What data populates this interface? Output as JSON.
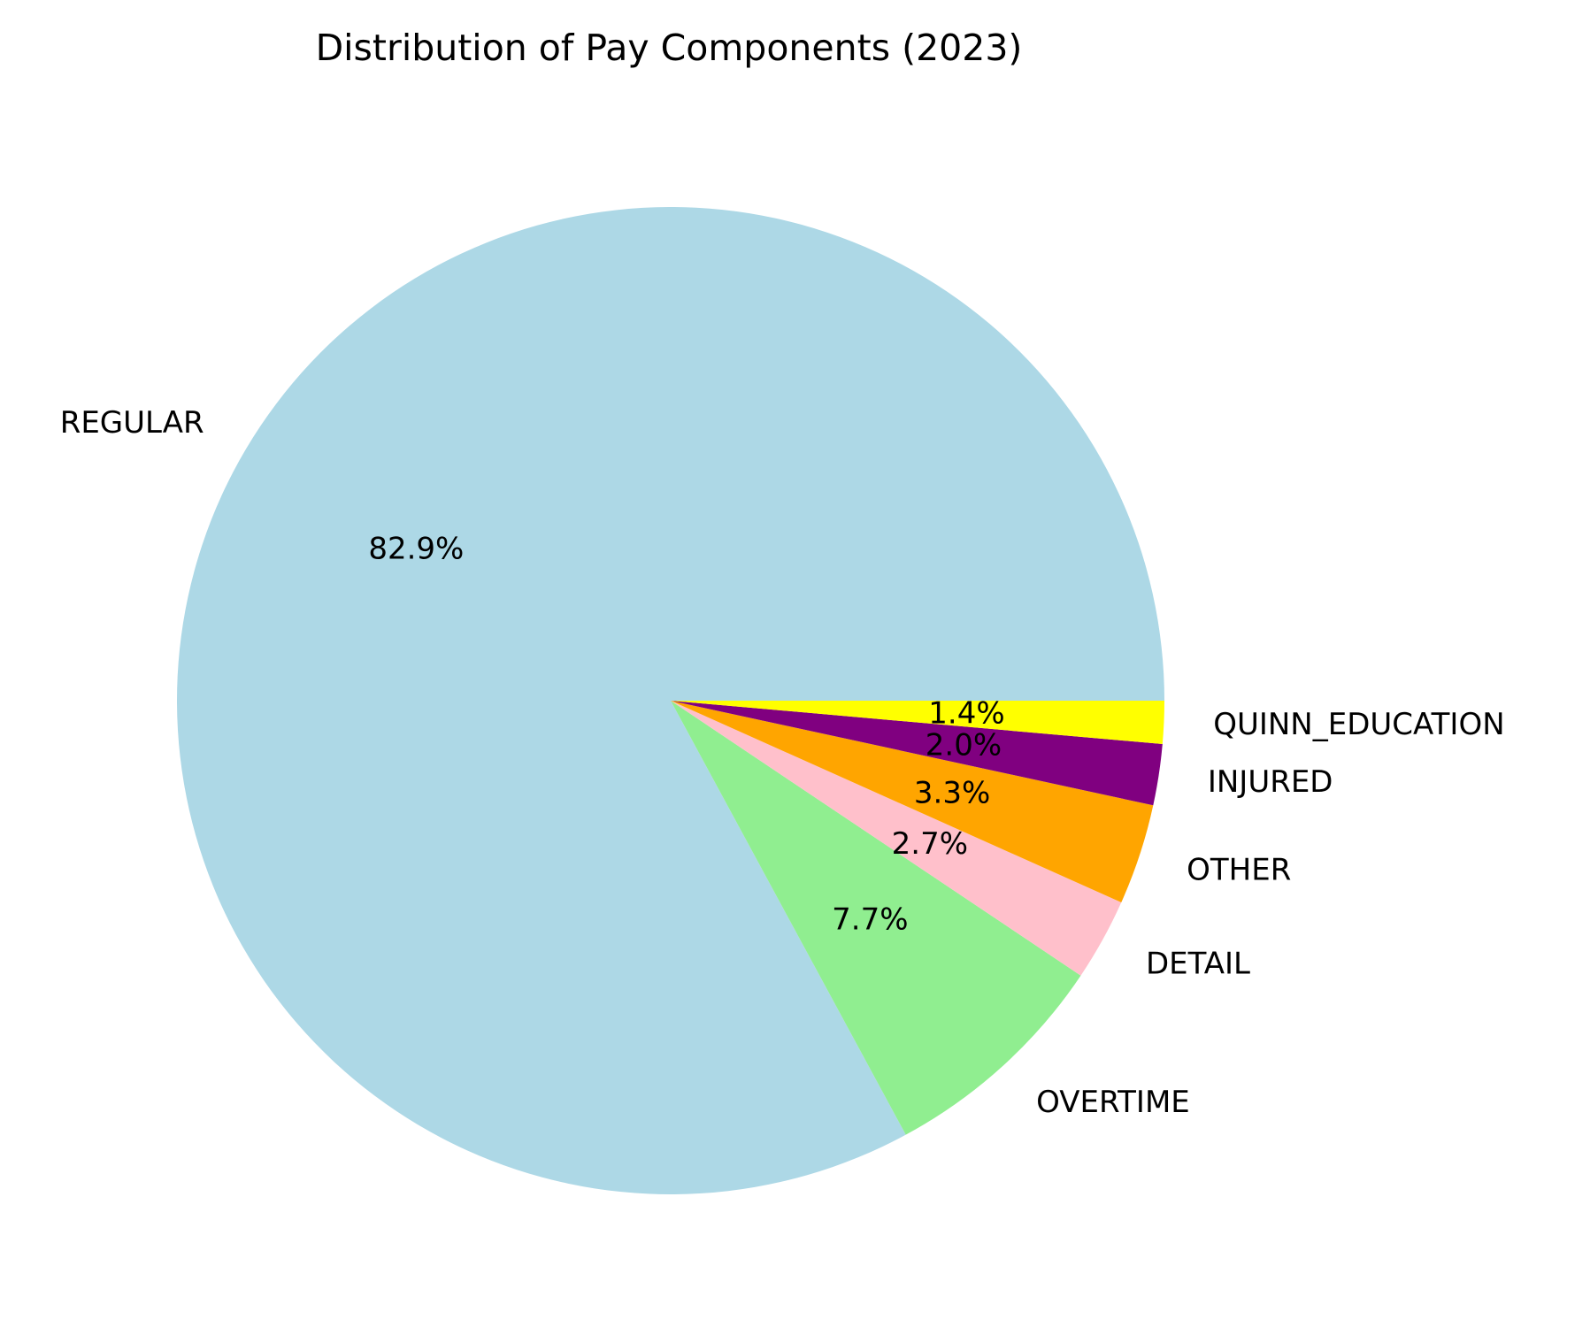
{
  "chart_data": {
    "type": "pie",
    "title": "Distribution of Pay Components (2023)",
    "start_angle": 0,
    "direction": "counterclockwise",
    "slices": [
      {
        "label": "REGULAR",
        "percent": 82.9,
        "pct_text": "82.9%",
        "color": "#ADD8E6"
      },
      {
        "label": "OVERTIME",
        "percent": 7.7,
        "pct_text": "7.7%",
        "color": "#90EE90"
      },
      {
        "label": "DETAIL",
        "percent": 2.7,
        "pct_text": "2.7%",
        "color": "#FFC0CB"
      },
      {
        "label": "OTHER",
        "percent": 3.3,
        "pct_text": "3.3%",
        "color": "#FFA500"
      },
      {
        "label": "INJURED",
        "percent": 2.0,
        "pct_text": "2.0%",
        "color": "#800080"
      },
      {
        "label": "QUINN_EDUCATION",
        "percent": 1.4,
        "pct_text": "1.4%",
        "color": "#FFFF00"
      }
    ]
  }
}
